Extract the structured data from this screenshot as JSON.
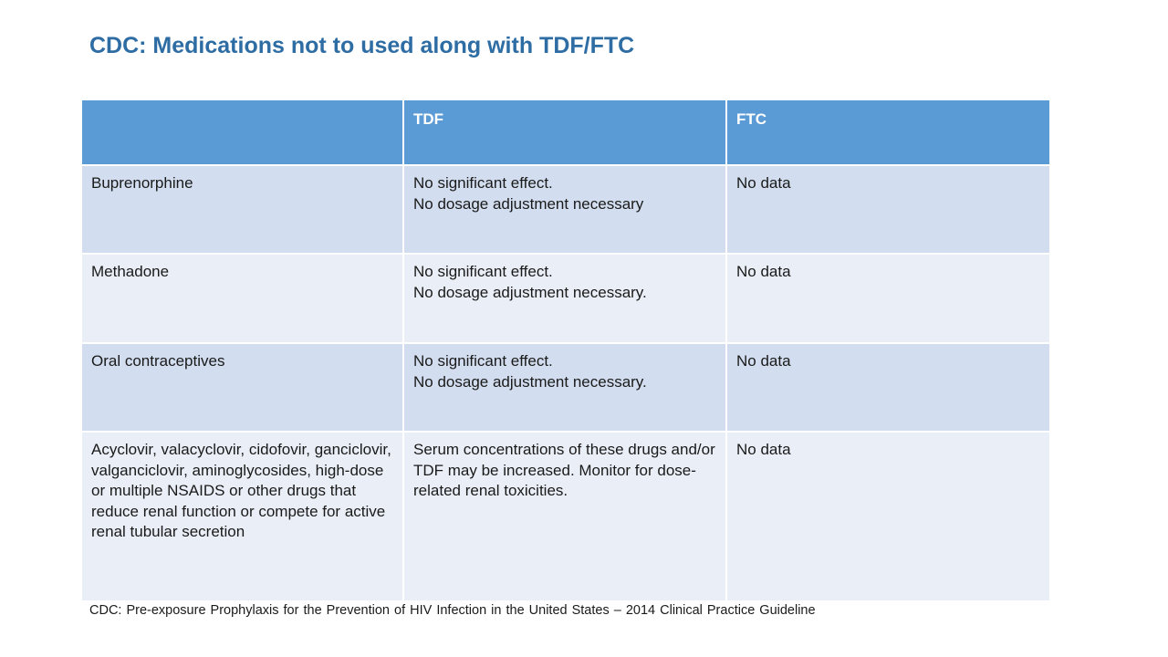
{
  "slide": {
    "title": "CDC: Medications not to used along with TDF/FTC",
    "footnote": "CDC: Pre-exposure Prophylaxis for the Prevention of HIV Infection in the United States – 2014 Clinical Practice Guideline"
  },
  "table": {
    "headers": [
      "",
      "TDF",
      "FTC"
    ],
    "rows": [
      {
        "medication": "Buprenorphine",
        "tdf": [
          "No significant effect.",
          "No dosage adjustment necessary"
        ],
        "ftc": "No data"
      },
      {
        "medication": "Methadone",
        "tdf": [
          "No significant effect.",
          "No dosage adjustment necessary."
        ],
        "ftc": "No data"
      },
      {
        "medication": "Oral contraceptives",
        "tdf": [
          "No significant effect.",
          "No dosage adjustment necessary."
        ],
        "ftc": "No data"
      },
      {
        "medication": "Acyclovir, valacyclovir, cidofovir, ganciclovir, valganciclovir, aminoglycosides, high-dose or multiple NSAIDS or other drugs that reduce renal function or compete for active renal tubular secretion",
        "tdf": [
          "Serum concentrations of these drugs and/or TDF may be increased. Monitor for dose-related renal toxicities."
        ],
        "ftc": "No data"
      }
    ]
  },
  "colors": {
    "title": "#2E6DA4",
    "header_bg": "#5B9BD5",
    "row_dark": "#D2DEEF",
    "row_light": "#EAEFF7"
  }
}
